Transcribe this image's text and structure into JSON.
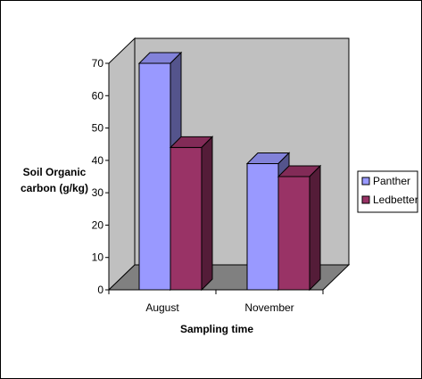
{
  "chart_data": {
    "type": "bar",
    "style": "3d-clustered-column",
    "categories": [
      "August",
      "November"
    ],
    "series": [
      {
        "name": "Panther",
        "values": [
          70,
          39
        ],
        "color": "#9999FF"
      },
      {
        "name": "Ledbetter",
        "values": [
          44,
          35
        ],
        "color": "#993366"
      }
    ],
    "ylabel": "Soil Organic\ncarbon (g/kg)",
    "xlabel": "Sampling time",
    "ylim": [
      0,
      70
    ],
    "yticks": [
      0,
      10,
      20,
      30,
      40,
      50,
      60,
      70
    ],
    "grid": false,
    "legend": "right",
    "wall_color": "#C0C0C0",
    "floor_color": "#808080"
  }
}
